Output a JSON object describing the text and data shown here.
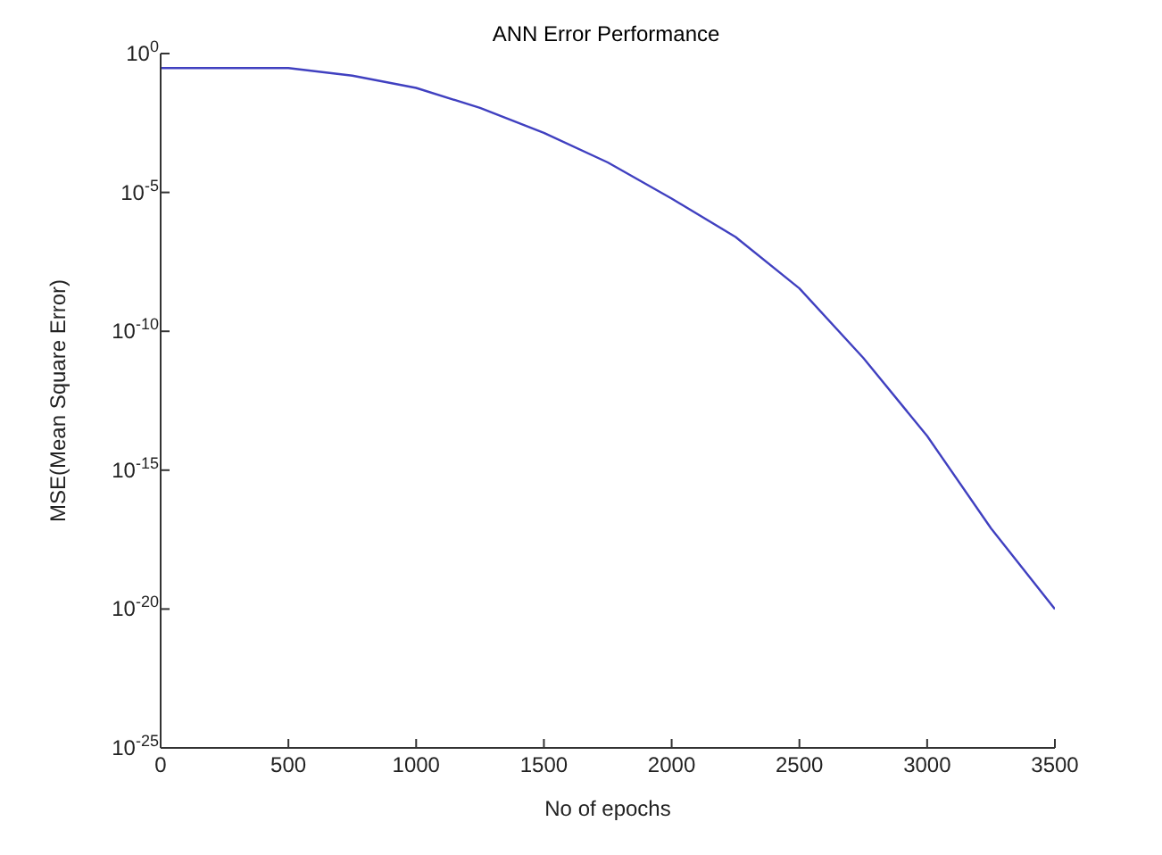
{
  "chart_data": {
    "type": "line",
    "title": "ANN Error Performance",
    "xlabel": "No of epochs",
    "ylabel": "MSE(Mean Square Error)",
    "log": "y",
    "grid": false,
    "legend": false,
    "marker": "none",
    "line_style": "solid",
    "x": [
      0,
      250,
      500,
      750,
      1000,
      1250,
      1500,
      1750,
      2000,
      2250,
      2500,
      2750,
      3000,
      3250,
      3500
    ],
    "series": [
      {
        "color": "#4040c0",
        "values": [
          0.3,
          0.3,
          0.3,
          0.16,
          0.058,
          0.011,
          0.0014,
          0.00012,
          6e-06,
          2.5e-07,
          3.5e-09,
          1.1e-11,
          1.7e-14,
          8e-18,
          1e-20
        ]
      }
    ],
    "xlim": [
      0,
      3500
    ],
    "xticks": [
      0,
      500,
      1000,
      1500,
      2000,
      2500,
      3000,
      3500
    ],
    "ylim": [
      1e-25,
      1
    ],
    "yticks": [
      {
        "value": 1e-25,
        "label": "10$^{-25}$"
      },
      {
        "value": 1e-20,
        "label": "10$^{-20}$"
      },
      {
        "value": 1e-15,
        "label": "10$^{-15}$"
      },
      {
        "value": 1e-10,
        "label": "10$^{-10}$"
      },
      {
        "value": 1e-05,
        "label": "10$^{-5}$"
      },
      {
        "value": 1,
        "label": "10$^{0}$"
      }
    ]
  }
}
